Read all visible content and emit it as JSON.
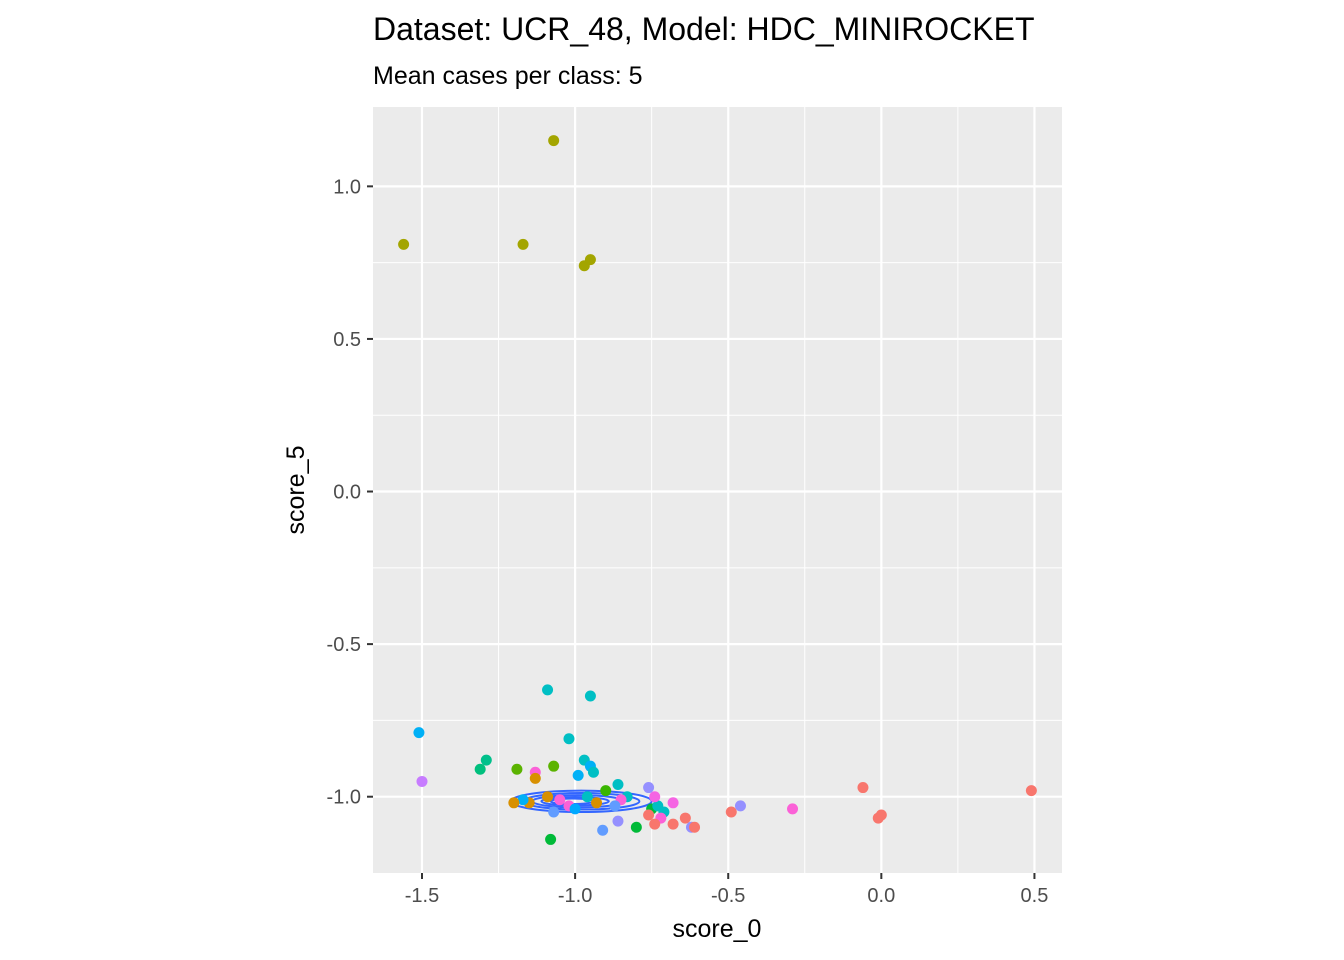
{
  "chart_data": {
    "type": "scatter",
    "title": "Dataset: UCR_48, Model: HDC_MINIROCKET",
    "subtitle": "Mean cases per class: 5",
    "xlabel": "score_0",
    "ylabel": "score_5",
    "xlim": [
      -1.66,
      0.59
    ],
    "ylim": [
      -1.25,
      1.26
    ],
    "x_ticks": [
      -1.5,
      -1.0,
      -0.5,
      0.0,
      0.5
    ],
    "x_tick_labels": [
      "-1.5",
      "-1.0",
      "-0.5",
      "0.0",
      "0.5"
    ],
    "y_ticks": [
      -1.0,
      -0.5,
      0.0,
      0.5,
      1.0
    ],
    "y_tick_labels": [
      "-1.0",
      "-0.5",
      "0.0",
      "0.5",
      "1.0"
    ],
    "grid": true,
    "panel_background": "#ebebeb",
    "grid_color": "#ffffff",
    "points": [
      {
        "x": -1.07,
        "y": 1.15,
        "color": "#a3a500"
      },
      {
        "x": -1.56,
        "y": 0.81,
        "color": "#a3a500"
      },
      {
        "x": -1.17,
        "y": 0.81,
        "color": "#a3a500"
      },
      {
        "x": -0.97,
        "y": 0.74,
        "color": "#a3a500"
      },
      {
        "x": -0.95,
        "y": 0.76,
        "color": "#a3a500"
      },
      {
        "x": -1.09,
        "y": -0.65,
        "color": "#00bfc4"
      },
      {
        "x": -0.95,
        "y": -0.67,
        "color": "#00bfc4"
      },
      {
        "x": -1.02,
        "y": -0.81,
        "color": "#00bfc4"
      },
      {
        "x": -0.97,
        "y": -0.88,
        "color": "#00bfc4"
      },
      {
        "x": -1.29,
        "y": -0.88,
        "color": "#00c08b"
      },
      {
        "x": -1.51,
        "y": -0.79,
        "color": "#00b0f6"
      },
      {
        "x": -1.5,
        "y": -0.95,
        "color": "#c77cff"
      },
      {
        "x": -1.31,
        "y": -0.91,
        "color": "#00bf7d"
      },
      {
        "x": -1.19,
        "y": -0.91,
        "color": "#5bb300"
      },
      {
        "x": -1.07,
        "y": -0.9,
        "color": "#5bb300"
      },
      {
        "x": -1.13,
        "y": -0.92,
        "color": "#fb61d7"
      },
      {
        "x": -1.13,
        "y": -0.94,
        "color": "#d89000"
      },
      {
        "x": -0.99,
        "y": -0.93,
        "color": "#00b0f6"
      },
      {
        "x": -0.95,
        "y": -0.9,
        "color": "#00b0f6"
      },
      {
        "x": -0.94,
        "y": -0.92,
        "color": "#00bfc4"
      },
      {
        "x": -0.86,
        "y": -0.96,
        "color": "#00bfc4"
      },
      {
        "x": -0.83,
        "y": -1.0,
        "color": "#00bfc4"
      },
      {
        "x": -0.9,
        "y": -0.98,
        "color": "#39b600"
      },
      {
        "x": -0.85,
        "y": -1.01,
        "color": "#fb61d7"
      },
      {
        "x": -0.93,
        "y": -1.02,
        "color": "#d89000"
      },
      {
        "x": -0.96,
        "y": -1.0,
        "color": "#00bfc4"
      },
      {
        "x": -1.02,
        "y": -1.03,
        "color": "#fb61d7"
      },
      {
        "x": -1.05,
        "y": -1.01,
        "color": "#fb61d7"
      },
      {
        "x": -1.09,
        "y": -1.0,
        "color": "#d89000"
      },
      {
        "x": -1.15,
        "y": -1.02,
        "color": "#d89000"
      },
      {
        "x": -1.17,
        "y": -1.01,
        "color": "#00b0f6"
      },
      {
        "x": -1.2,
        "y": -1.02,
        "color": "#d89000"
      },
      {
        "x": -1.07,
        "y": -1.05,
        "color": "#619cff"
      },
      {
        "x": -1.0,
        "y": -1.04,
        "color": "#00a9ff"
      },
      {
        "x": -0.87,
        "y": -1.03,
        "color": "#619cff"
      },
      {
        "x": -0.91,
        "y": -1.11,
        "color": "#619cff"
      },
      {
        "x": -0.86,
        "y": -1.08,
        "color": "#9590ff"
      },
      {
        "x": -1.08,
        "y": -1.14,
        "color": "#00ba38"
      },
      {
        "x": -0.8,
        "y": -1.1,
        "color": "#00ba38"
      },
      {
        "x": -0.75,
        "y": -1.04,
        "color": "#00ba38"
      },
      {
        "x": -0.73,
        "y": -1.03,
        "color": "#00bfc4"
      },
      {
        "x": -0.71,
        "y": -1.05,
        "color": "#00bfc4"
      },
      {
        "x": -0.74,
        "y": -1.0,
        "color": "#f564e3"
      },
      {
        "x": -0.76,
        "y": -0.97,
        "color": "#9590ff"
      },
      {
        "x": -0.68,
        "y": -1.02,
        "color": "#f564e3"
      },
      {
        "x": -0.76,
        "y": -1.06,
        "color": "#f8766d"
      },
      {
        "x": -0.72,
        "y": -1.07,
        "color": "#fb61d7"
      },
      {
        "x": -0.74,
        "y": -1.09,
        "color": "#f8766d"
      },
      {
        "x": -0.68,
        "y": -1.09,
        "color": "#f8766d"
      },
      {
        "x": -0.64,
        "y": -1.07,
        "color": "#f8766d"
      },
      {
        "x": -0.62,
        "y": -1.1,
        "color": "#9590ff"
      },
      {
        "x": -0.61,
        "y": -1.1,
        "color": "#f8766d"
      },
      {
        "x": -0.49,
        "y": -1.05,
        "color": "#f8766d"
      },
      {
        "x": -0.46,
        "y": -1.03,
        "color": "#9590ff"
      },
      {
        "x": -0.29,
        "y": -1.04,
        "color": "#fb61d7"
      },
      {
        "x": -0.06,
        "y": -0.97,
        "color": "#f8766d"
      },
      {
        "x": -0.01,
        "y": -1.07,
        "color": "#f8766d"
      },
      {
        "x": 0.0,
        "y": -1.06,
        "color": "#f8766d"
      },
      {
        "x": 0.49,
        "y": -0.98,
        "color": "#f8766d"
      }
    ],
    "density_contours": {
      "color": "#3366ff",
      "center": [
        -0.98,
        -1.015
      ],
      "ellipses": [
        {
          "rx": 0.23,
          "ry": 0.035,
          "dx": 0.0,
          "dy": 0.0
        },
        {
          "rx": 0.19,
          "ry": 0.027,
          "dx": 0.0,
          "dy": 0.0
        },
        {
          "rx": 0.15,
          "ry": 0.02,
          "dx": -0.01,
          "dy": 0.0
        },
        {
          "rx": 0.11,
          "ry": 0.014,
          "dx": -0.02,
          "dy": 0.0
        },
        {
          "rx": 0.07,
          "ry": 0.009,
          "dx": -0.03,
          "dy": 0.0
        }
      ]
    }
  }
}
